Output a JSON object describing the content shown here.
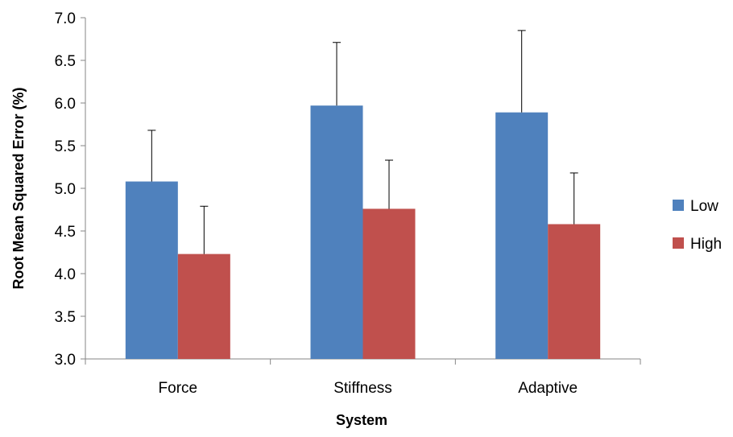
{
  "chart_data": {
    "type": "bar",
    "title": "",
    "xlabel": "System",
    "ylabel": "Root Mean Squared Error (%)",
    "categories": [
      "Force",
      "Stiffness",
      "Adaptive"
    ],
    "series": [
      {
        "name": "Low",
        "color": "#4f81bd",
        "values": [
          5.08,
          5.97,
          5.89
        ],
        "error": [
          0.6,
          0.74,
          0.96
        ]
      },
      {
        "name": "High",
        "color": "#c0504d",
        "values": [
          4.23,
          4.76,
          4.58
        ],
        "error": [
          0.56,
          0.57,
          0.6
        ]
      }
    ],
    "ylim": [
      3.0,
      7.0
    ],
    "yticks": [
      "3.0",
      "3.5",
      "4.0",
      "4.5",
      "5.0",
      "5.5",
      "6.0",
      "6.5",
      "7.0"
    ],
    "grid": false,
    "legend_position": "right",
    "error_bars": "upper"
  }
}
